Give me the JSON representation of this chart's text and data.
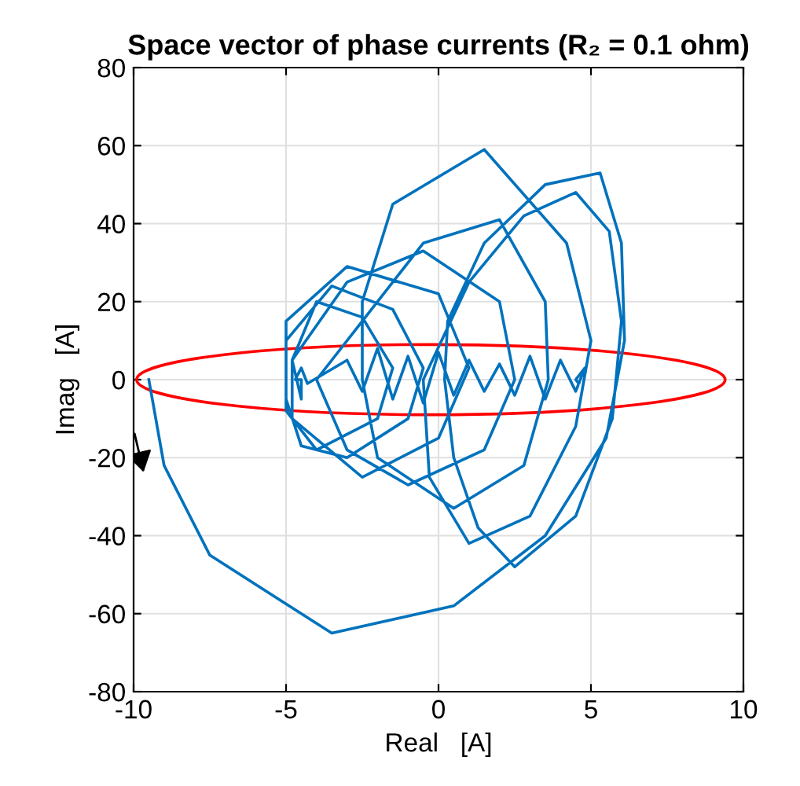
{
  "chart_data": {
    "type": "line",
    "title": "Space vector of phase currents (R₂ = 0.1 ohm)",
    "xlabel": "Real   [A]",
    "ylabel": "Imag   [A]",
    "xlim": [
      -10,
      10
    ],
    "ylim": [
      -80,
      80
    ],
    "xticks": [
      -10,
      -5,
      0,
      5,
      10
    ],
    "yticks": [
      -80,
      -60,
      -40,
      -20,
      0,
      20,
      40,
      60,
      80
    ],
    "grid": true,
    "line_style": "solid",
    "marker": "none",
    "series": [
      {
        "color": "#0072bd",
        "x": [
          -9.5,
          -9,
          -7.5,
          -3.5,
          0.5,
          3.5,
          5.5,
          6.1,
          6,
          5.3,
          3.5,
          1.5,
          0.3,
          0.2,
          0.5,
          1.3,
          2.5,
          4.5,
          5.7,
          6,
          5.6,
          4.5,
          2.8,
          1,
          -0.5,
          -0.3,
          1,
          3,
          4.5,
          5,
          4.2,
          1.5,
          -1.5,
          -2.5,
          -2.5,
          -2,
          0.5,
          2.8,
          3.6,
          3.5,
          2,
          -0.5,
          -2.5,
          -4,
          -3,
          -1,
          1.5,
          2.5,
          2,
          -0.5,
          -3,
          -4.8,
          -4.8,
          -2.5,
          0,
          1,
          0,
          -3,
          -5,
          -5,
          -4.5,
          -3,
          -1,
          -0.5,
          -1.5,
          -3.5,
          -5,
          -5,
          -4,
          -2,
          -1.5,
          -2.5,
          -4,
          -4.8,
          -4.5,
          -4.5,
          -4.7,
          -4.5,
          -4.3,
          -3,
          -2.5,
          -2,
          -1.5,
          -1,
          -0.5,
          0,
          0.5,
          1,
          1.5,
          2,
          2.5,
          3,
          3.5,
          4,
          4.5,
          4.8,
          4.5,
          4.6
        ],
        "values": [
          0,
          -22,
          -45,
          -65,
          -58,
          -40,
          -15,
          10,
          35,
          53,
          50,
          35,
          15,
          0,
          -20,
          -38,
          -48,
          -35,
          -10,
          15,
          38,
          48,
          42,
          25,
          0,
          -25,
          -42,
          -35,
          -12,
          10,
          35,
          59,
          45,
          20,
          0,
          -20,
          -33,
          -22,
          0,
          20,
          41,
          35,
          15,
          0,
          -18,
          -27,
          -18,
          0,
          20,
          33,
          25,
          5,
          -10,
          -25,
          -15,
          3,
          22,
          29,
          15,
          -5,
          -17,
          -20,
          -10,
          3,
          18,
          24,
          10,
          -8,
          -18,
          -10,
          3,
          16,
          20,
          5,
          -5,
          0,
          0,
          3,
          -1,
          5,
          -3,
          8,
          -5,
          6,
          -6,
          7,
          -4,
          5,
          -3,
          4,
          -4,
          6,
          -5,
          5,
          -3,
          3,
          0,
          -1
        ]
      }
    ]
  }
}
